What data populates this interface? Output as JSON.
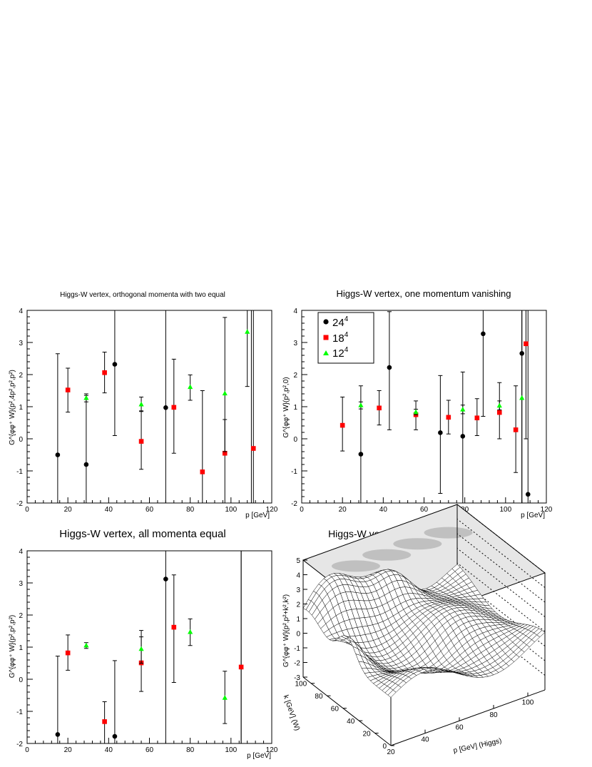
{
  "chart_data": [
    {
      "type": "scatter",
      "title": "Higgs-W vertex, orthogonal momenta with two equal",
      "xlabel": "p [GeV]",
      "ylabel": "G^{φφ⁺ W}(p²,4p²,p²,p²)",
      "xlim": [
        0,
        120
      ],
      "ylim": [
        -2,
        4
      ],
      "xticks": [
        "0",
        "20",
        "40",
        "60",
        "80",
        "100",
        "120"
      ],
      "yticks": [
        "-2",
        "-1",
        "0",
        "1",
        "2",
        "3",
        "4"
      ],
      "series": [
        {
          "name": "24^4",
          "color": "#000000",
          "marker": "circle",
          "points": [
            [
              15,
              -0.5,
              -2,
              2.65
            ],
            [
              29,
              -0.8,
              -2,
              1.35
            ],
            [
              43,
              2.32,
              0.1,
              4
            ],
            [
              68,
              0.97,
              -2,
              4
            ],
            [
              110,
              -2.1,
              -2,
              4
            ]
          ]
        },
        {
          "name": "18^4",
          "color": "#ff0000",
          "marker": "square",
          "points": [
            [
              20,
              1.52,
              0.83,
              2.2
            ],
            [
              38,
              2.06,
              1.43,
              2.7
            ],
            [
              56,
              -0.08,
              -0.95,
              0.87
            ],
            [
              72,
              0.98,
              -0.45,
              2.48
            ],
            [
              86,
              -1.03,
              -2,
              1.5
            ],
            [
              97,
              -0.45,
              -2,
              0.6
            ],
            [
              111,
              -0.3,
              -2,
              4
            ]
          ]
        },
        {
          "name": "12^4",
          "color": "#00ff00",
          "marker": "triangle",
          "points": [
            [
              29,
              1.27,
              1.15,
              1.4
            ],
            [
              56,
              1.07,
              0.85,
              1.3
            ],
            [
              80,
              1.61,
              1.2,
              1.99
            ],
            [
              97,
              1.41,
              -0.4,
              3.78
            ],
            [
              108,
              3.33,
              1.63,
              4
            ]
          ]
        }
      ]
    },
    {
      "type": "scatter",
      "title": "Higgs-W vertex, one momentum vanishing",
      "xlabel": "p [GeV]",
      "ylabel": "G^{φφ⁺ W}(p²,p²,0)",
      "xlim": [
        0,
        120
      ],
      "ylim": [
        -2,
        4
      ],
      "xticks": [
        "0",
        "20",
        "40",
        "60",
        "80",
        "100",
        "120"
      ],
      "yticks": [
        "-2",
        "-1",
        "0",
        "1",
        "2",
        "3",
        "4"
      ],
      "legend": {
        "position": "top-left",
        "entries": [
          "24",
          "18",
          "12"
        ],
        "superscript": "4"
      },
      "series": [
        {
          "name": "24^4",
          "color": "#000000",
          "marker": "circle",
          "points": [
            [
              29,
              -0.48,
              -2,
              1.65
            ],
            [
              43,
              2.22,
              0.28,
              3.96
            ],
            [
              68,
              0.19,
              -1.7,
              1.97
            ],
            [
              79,
              0.08,
              -2,
              2.08
            ],
            [
              89,
              3.27,
              0.7,
              4
            ],
            [
              108,
              2.66,
              -2,
              4
            ],
            [
              111,
              -1.73,
              -2,
              4
            ]
          ]
        },
        {
          "name": "18^4",
          "color": "#ff0000",
          "marker": "square",
          "points": [
            [
              20,
              0.42,
              -0.38,
              1.3
            ],
            [
              38,
              0.96,
              0.43,
              1.5
            ],
            [
              56,
              0.75,
              0.28,
              1.18
            ],
            [
              72,
              0.67,
              0.15,
              1.2
            ],
            [
              86,
              0.65,
              0.1,
              1.25
            ],
            [
              97,
              0.82,
              0.0,
              1.75
            ],
            [
              105,
              0.28,
              -1.05,
              1.65
            ],
            [
              110,
              2.96,
              0.0,
              4
            ]
          ]
        },
        {
          "name": "12^4",
          "color": "#00ff00",
          "marker": "triangle",
          "points": [
            [
              29,
              1.04,
              0.93,
              1.15
            ],
            [
              56,
              0.83,
              0.75,
              0.92
            ],
            [
              79,
              0.91,
              0.78,
              1.05
            ],
            [
              97,
              1.03,
              0.9,
              1.18
            ],
            [
              108,
              1.27,
              -2,
              4
            ]
          ]
        }
      ]
    },
    {
      "type": "scatter",
      "title": "Higgs-W vertex, all momenta equal",
      "xlabel": "p [GeV]",
      "ylabel": "G^{φφ⁺ W}(p²,p²,p²)",
      "xlim": [
        0,
        120
      ],
      "ylim": [
        -2,
        4
      ],
      "xticks": [
        "0",
        "20",
        "40",
        "60",
        "80",
        "100",
        "120"
      ],
      "yticks": [
        "-2",
        "-1",
        "0",
        "1",
        "2",
        "3",
        "4"
      ],
      "series": [
        {
          "name": "24^4",
          "color": "#000000",
          "marker": "circle",
          "points": [
            [
              15,
              -1.72,
              -2,
              0.72
            ],
            [
              43,
              -1.78,
              -2,
              0.58
            ],
            [
              68,
              3.12,
              -2,
              4
            ],
            [
              105,
              -2.2,
              -2,
              4
            ]
          ]
        },
        {
          "name": "18^4",
          "color": "#ff0000",
          "marker": "square",
          "points": [
            [
              20,
              0.82,
              0.28,
              1.38
            ],
            [
              38,
              -1.32,
              -2,
              -0.7
            ],
            [
              56,
              0.51,
              -0.38,
              1.52
            ],
            [
              72,
              1.62,
              -0.1,
              3.25
            ],
            [
              105,
              0.38,
              -2,
              4
            ]
          ]
        },
        {
          "name": "12^4",
          "color": "#00ff00",
          "marker": "triangle",
          "points": [
            [
              29,
              1.05,
              0.96,
              1.14
            ],
            [
              56,
              0.94,
              0.5,
              1.32
            ],
            [
              80,
              1.47,
              1.05,
              1.88
            ],
            [
              97,
              -0.58,
              -1.38,
              0.25
            ]
          ]
        }
      ]
    },
    {
      "type": "surface",
      "title": "Higgs-W vertex, orthogonal momenta",
      "xlabel": "p [GeV] (Higgs)",
      "ylabel": "k [GeV] (W)",
      "zlabel": "G^{φφ⁺ W}(p²,p²+k²,k²)",
      "xticks": [
        "20",
        "40",
        "60",
        "80",
        "100"
      ],
      "yticks": [
        "0",
        "20",
        "40",
        "60",
        "80",
        "100"
      ],
      "zticks": [
        "-3",
        "-2",
        "-1",
        "0",
        "1",
        "2",
        "3",
        "4",
        "5"
      ]
    }
  ]
}
